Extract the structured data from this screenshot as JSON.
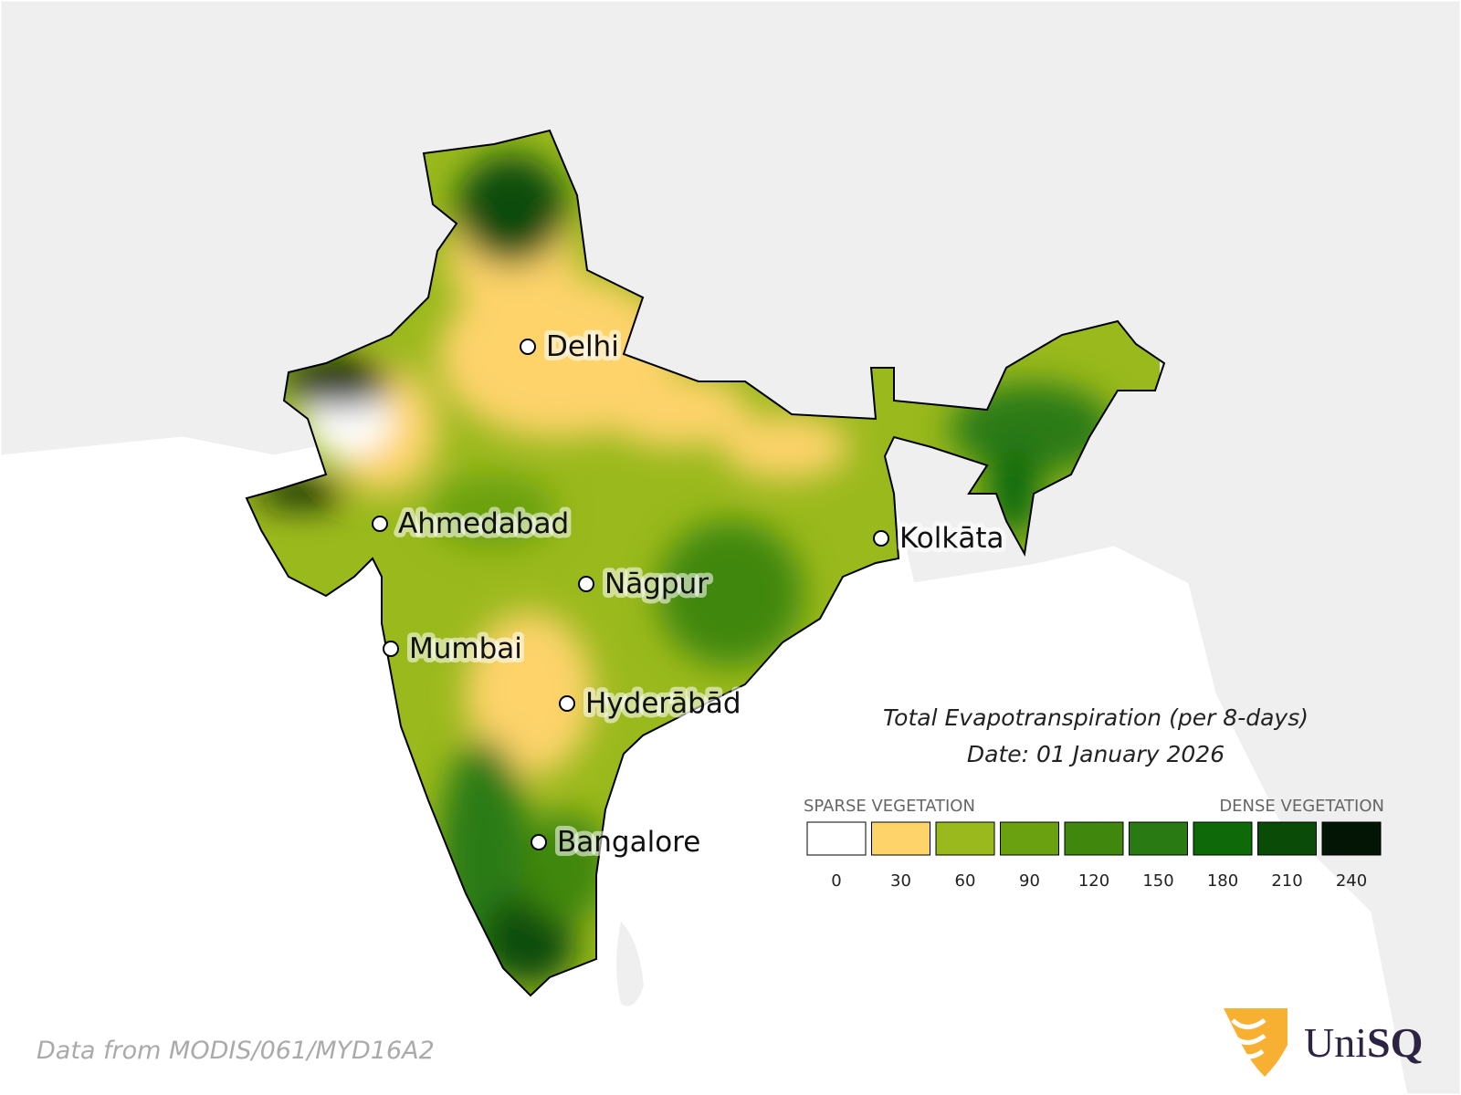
{
  "title": "Total Evapotranspiration (per 8-days)",
  "date": "Date: 01 January 2026",
  "cities": [
    "Delhi",
    "Ahmedabad",
    "Kolkāta",
    "Nāgpur",
    "Mumbai",
    "Hyderābād",
    "Bangalore"
  ],
  "legend": {
    "label_left": "SPARSE VEGETATION",
    "label_right": "DENSE VEGETATION",
    "ticks": [
      0,
      30,
      60,
      90,
      120,
      150,
      180,
      210,
      240
    ],
    "colors": [
      "#ffffff",
      "#fdd36a",
      "#9ab91c",
      "#6aa111",
      "#3f870d",
      "#2a7a14",
      "#0e6a08",
      "#0a4b07",
      "#031505"
    ]
  },
  "source": "Data from MODIS/061/MYD16A2",
  "logo": {
    "prefix": "Uni",
    "suffix": "SQ"
  }
}
